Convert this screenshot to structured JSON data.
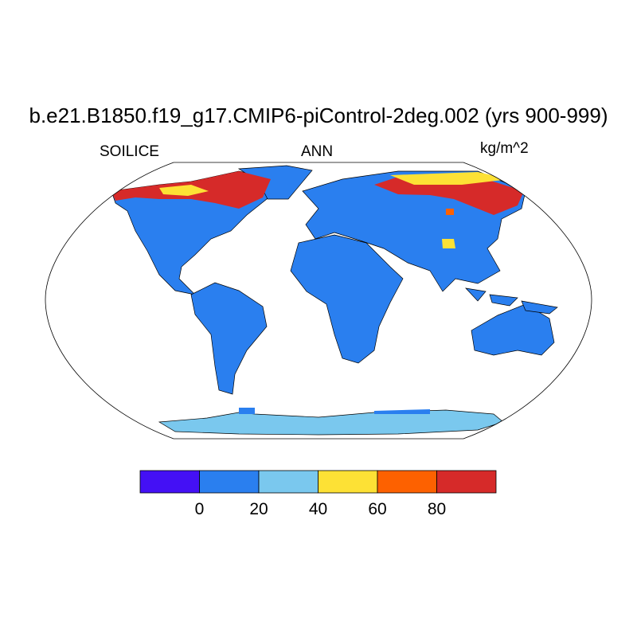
{
  "title": "b.e21.B1850.f19_g17.CMIP6-piControl-2deg.002 (yrs 900-999)",
  "left_string": "SOILICE",
  "center_string": "ANN",
  "right_string": "kg/m^2",
  "map": {
    "projection": "Robinson",
    "variable": "SOILICE",
    "season": "ANN"
  },
  "colorbar": {
    "colors": [
      "#4410f5",
      "#2a7fef",
      "#7ac8ee",
      "#fde135",
      "#fd6100",
      "#d62a29"
    ],
    "labels": [
      "0",
      "20",
      "40",
      "60",
      "80"
    ]
  }
}
